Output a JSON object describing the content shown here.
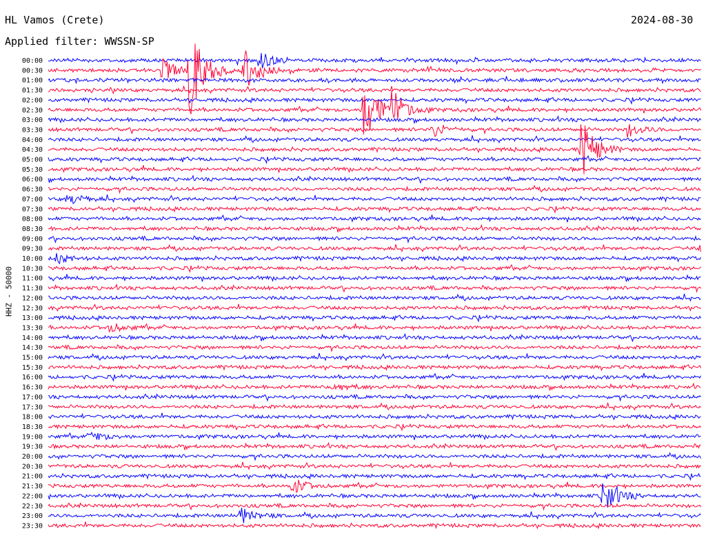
{
  "header": {
    "station": "HL Vamos (Crete)",
    "filter": "Applied filter: WWSSN-SP",
    "date": "2024-08-30"
  },
  "y_axis_label": "HHZ - 50000",
  "chart_data": {
    "type": "line",
    "title": "HL Vamos (Crete)",
    "date": "2024-08-30",
    "subtitle": "Applied filter: WWSSN-SP",
    "ylabel": "HHZ - 50000",
    "xlabel": "",
    "row_labels": [
      "00:00",
      "00:30",
      "01:00",
      "01:30",
      "02:00",
      "02:30",
      "03:00",
      "03:30",
      "04:00",
      "04:30",
      "05:00",
      "05:30",
      "06:00",
      "06:30",
      "07:00",
      "07:30",
      "08:00",
      "08:30",
      "09:00",
      "09:30",
      "10:00",
      "10:30",
      "11:00",
      "11:30",
      "12:00",
      "12:30",
      "13:00",
      "13:30",
      "14:00",
      "14:30",
      "15:00",
      "15:30",
      "16:00",
      "16:30",
      "17:00",
      "17:30",
      "18:00",
      "18:30",
      "19:00",
      "19:30",
      "20:00",
      "20:30",
      "21:00",
      "21:30",
      "22:00",
      "22:30",
      "23:00",
      "23:30"
    ],
    "trace_colors": [
      "#0000ff",
      "#ff0033"
    ],
    "row_minutes": 30,
    "x_range_minutes": [
      0,
      30
    ],
    "events": [
      {
        "start": "00:30",
        "minute": 5.2,
        "amplitude": 1.2
      },
      {
        "start": "00:30",
        "minute": 6.5,
        "amplitude": 5.0
      },
      {
        "start": "00:30",
        "minute": 9.0,
        "amplitude": 2.6
      },
      {
        "start": "00:00",
        "minute": 9.7,
        "amplitude": 1.0
      },
      {
        "start": "02:30",
        "minute": 14.5,
        "amplitude": 4.0
      },
      {
        "start": "02:30",
        "minute": 15.8,
        "amplitude": 1.8
      },
      {
        "start": "03:30",
        "minute": 17.6,
        "amplitude": 0.8
      },
      {
        "start": "03:30",
        "minute": 26.6,
        "amplitude": 0.7
      },
      {
        "start": "04:30",
        "minute": 24.5,
        "amplitude": 3.2
      },
      {
        "start": "07:00",
        "minute": 0.9,
        "amplitude": 0.6
      },
      {
        "start": "09:30",
        "minute": 30.0,
        "amplitude": 0.5
      },
      {
        "start": "10:00",
        "minute": 0.4,
        "amplitude": 0.5
      },
      {
        "start": "13:30",
        "minute": 2.8,
        "amplitude": 0.5
      },
      {
        "start": "16:30",
        "minute": 13.0,
        "amplitude": 0.5
      },
      {
        "start": "19:00",
        "minute": 2.0,
        "amplitude": 0.5
      },
      {
        "start": "21:30",
        "minute": 11.2,
        "amplitude": 0.8
      },
      {
        "start": "22:00",
        "minute": 25.5,
        "amplitude": 1.8
      },
      {
        "start": "23:00",
        "minute": 8.8,
        "amplitude": 0.9
      }
    ]
  }
}
